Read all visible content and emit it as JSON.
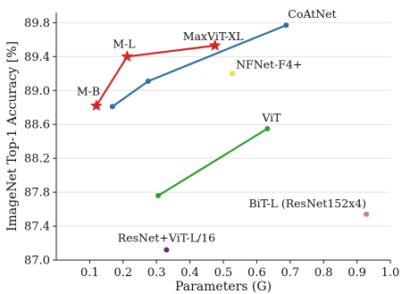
{
  "chart_data": {
    "type": "line",
    "title": "",
    "xlabel": "Parameters (G)",
    "ylabel": "ImageNet Top-1 Accuracy [%]",
    "xlim": [
      0.0,
      1.0
    ],
    "ylim": [
      87.0,
      89.92
    ],
    "xticks": [
      0.1,
      0.2,
      0.3,
      0.4,
      0.5,
      0.6,
      0.7,
      0.8,
      0.9,
      1.0
    ],
    "xtick_labels": [
      "0.1",
      "0.2",
      "0.3",
      "0.4",
      "0.5",
      "0.6",
      "0.7",
      "0.8",
      "0.9",
      "1.0"
    ],
    "yticks": [
      87.0,
      87.4,
      87.8,
      88.2,
      88.6,
      89.0,
      89.4,
      89.8
    ],
    "ytick_labels": [
      "87.0",
      "87.4",
      "87.8",
      "88.2",
      "88.6",
      "89.0",
      "89.4",
      "89.8"
    ],
    "grid": "horizontal",
    "series": [
      {
        "color": "#d62728",
        "marker": "star",
        "lines": true,
        "points": [
          {
            "x": 0.12,
            "y": 88.82,
            "label": "M-B"
          },
          {
            "x": 0.212,
            "y": 89.4,
            "label": "M-L"
          },
          {
            "x": 0.475,
            "y": 89.53,
            "label": "MaxViT-XL"
          }
        ]
      },
      {
        "color": "#2c6ea6",
        "marker": "dot",
        "lines": true,
        "points": [
          {
            "x": 0.168,
            "y": 88.81,
            "label": ""
          },
          {
            "x": 0.275,
            "y": 89.11,
            "label": ""
          },
          {
            "x": 0.688,
            "y": 89.77,
            "label": "CoAtNet"
          }
        ]
      },
      {
        "color": "#2ca02c",
        "marker": "dot",
        "lines": true,
        "points": [
          {
            "x": 0.305,
            "y": 87.76,
            "label": ""
          },
          {
            "x": 0.632,
            "y": 88.55,
            "label": "ViT"
          }
        ]
      },
      {
        "color": "#e6e045",
        "marker": "dot",
        "lines": false,
        "points": [
          {
            "x": 0.527,
            "y": 89.2,
            "label": "NFNet-F4+"
          }
        ]
      },
      {
        "color": "#c97aa0",
        "marker": "dot",
        "lines": false,
        "points": [
          {
            "x": 0.928,
            "y": 87.54,
            "label": "BiT-L (ResNet152x4)"
          }
        ]
      },
      {
        "color": "#7b1f7e",
        "marker": "dot",
        "lines": false,
        "points": [
          {
            "x": 0.33,
            "y": 87.12,
            "label": "ResNet+ViT-L/16"
          }
        ]
      }
    ]
  }
}
